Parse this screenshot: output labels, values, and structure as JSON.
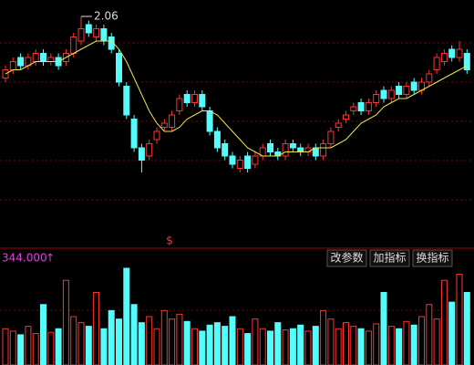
{
  "chart_data": {
    "type": "candlestick",
    "open": [
      1.91,
      1.93,
      1.96,
      1.94,
      1.95,
      1.97,
      1.95,
      1.96,
      1.95,
      1.97,
      2.0,
      2.04,
      2.01,
      2.03,
      2.01,
      1.97,
      1.89,
      1.81,
      1.74,
      1.72,
      1.76,
      1.79,
      1.79,
      1.83,
      1.87,
      1.85,
      1.87,
      1.83,
      1.78,
      1.75,
      1.72,
      1.69,
      1.72,
      1.7,
      1.72,
      1.75,
      1.73,
      1.72,
      1.75,
      1.74,
      1.73,
      1.74,
      1.72,
      1.75,
      1.79,
      1.81,
      1.83,
      1.85,
      1.83,
      1.85,
      1.88,
      1.86,
      1.89,
      1.87,
      1.9,
      1.88,
      1.9,
      1.93,
      1.95,
      1.98,
      1.96,
      1.97
    ],
    "high": [
      1.94,
      1.96,
      1.97,
      1.97,
      1.98,
      1.98,
      1.97,
      1.97,
      1.98,
      2.02,
      2.06,
      2.05,
      2.04,
      2.04,
      2.02,
      1.98,
      1.9,
      1.82,
      1.75,
      1.76,
      1.79,
      1.81,
      1.83,
      1.87,
      1.88,
      1.88,
      1.88,
      1.84,
      1.79,
      1.76,
      1.73,
      1.72,
      1.73,
      1.73,
      1.75,
      1.76,
      1.74,
      1.76,
      1.76,
      1.75,
      1.75,
      1.75,
      1.76,
      1.79,
      1.81,
      1.83,
      1.85,
      1.86,
      1.86,
      1.88,
      1.89,
      1.89,
      1.9,
      1.9,
      1.91,
      1.91,
      1.93,
      1.97,
      1.98,
      1.99,
      2.0,
      1.98
    ],
    "low": [
      1.9,
      1.92,
      1.93,
      1.93,
      1.94,
      1.94,
      1.94,
      1.93,
      1.94,
      1.96,
      1.99,
      2.01,
      2.0,
      1.99,
      1.97,
      1.89,
      1.81,
      1.73,
      1.68,
      1.71,
      1.75,
      1.78,
      1.78,
      1.82,
      1.84,
      1.84,
      1.83,
      1.77,
      1.73,
      1.71,
      1.69,
      1.68,
      1.68,
      1.69,
      1.71,
      1.72,
      1.71,
      1.71,
      1.73,
      1.72,
      1.72,
      1.71,
      1.71,
      1.74,
      1.78,
      1.8,
      1.82,
      1.82,
      1.82,
      1.84,
      1.85,
      1.85,
      1.86,
      1.86,
      1.87,
      1.87,
      1.89,
      1.92,
      1.94,
      1.95,
      1.95,
      1.92
    ],
    "close": [
      1.93,
      1.95,
      1.94,
      1.96,
      1.97,
      1.95,
      1.96,
      1.94,
      1.97,
      2.01,
      2.03,
      2.02,
      2.03,
      2.0,
      1.98,
      1.9,
      1.82,
      1.74,
      1.71,
      1.75,
      1.78,
      1.8,
      1.82,
      1.86,
      1.85,
      1.87,
      1.84,
      1.78,
      1.74,
      1.72,
      1.7,
      1.71,
      1.69,
      1.72,
      1.74,
      1.73,
      1.72,
      1.75,
      1.74,
      1.73,
      1.74,
      1.72,
      1.75,
      1.78,
      1.8,
      1.82,
      1.84,
      1.83,
      1.85,
      1.87,
      1.86,
      1.88,
      1.87,
      1.89,
      1.88,
      1.9,
      1.92,
      1.96,
      1.97,
      1.96,
      1.98,
      1.93
    ],
    "ma": [
      1.92,
      1.93,
      1.93,
      1.94,
      1.95,
      1.95,
      1.95,
      1.95,
      1.96,
      1.97,
      1.98,
      1.99,
      2.0,
      2.0,
      2.0,
      1.98,
      1.95,
      1.91,
      1.87,
      1.83,
      1.8,
      1.78,
      1.78,
      1.79,
      1.81,
      1.82,
      1.83,
      1.83,
      1.82,
      1.8,
      1.78,
      1.76,
      1.74,
      1.73,
      1.72,
      1.72,
      1.72,
      1.73,
      1.73,
      1.73,
      1.73,
      1.74,
      1.74,
      1.74,
      1.75,
      1.76,
      1.78,
      1.8,
      1.81,
      1.82,
      1.84,
      1.85,
      1.86,
      1.86,
      1.87,
      1.88,
      1.89,
      1.9,
      1.91,
      1.92,
      1.93,
      1.94
    ],
    "volume": [
      300,
      280,
      250,
      320,
      260,
      500,
      270,
      300,
      700,
      400,
      350,
      320,
      600,
      300,
      450,
      380,
      800,
      500,
      350,
      400,
      300,
      450,
      380,
      420,
      360,
      300,
      280,
      330,
      350,
      320,
      400,
      300,
      260,
      380,
      300,
      280,
      350,
      290,
      300,
      330,
      280,
      320,
      450,
      380,
      300,
      350,
      320,
      300,
      280,
      340,
      600,
      320,
      300,
      360,
      330,
      400,
      500,
      380,
      700,
      520,
      750,
      600
    ],
    "ylim": [
      1.5,
      2.1
    ],
    "y2lim": [
      0,
      800
    ],
    "up_color": "#ff3232",
    "down_color": "#54fcfc",
    "ma_color": "#e8e84a",
    "peak_label": "2.06",
    "marker": "$",
    "volume_label": "344.000",
    "volume_arrow": "↑",
    "buttons": [
      "改参数",
      "加指标",
      "换指标"
    ]
  }
}
